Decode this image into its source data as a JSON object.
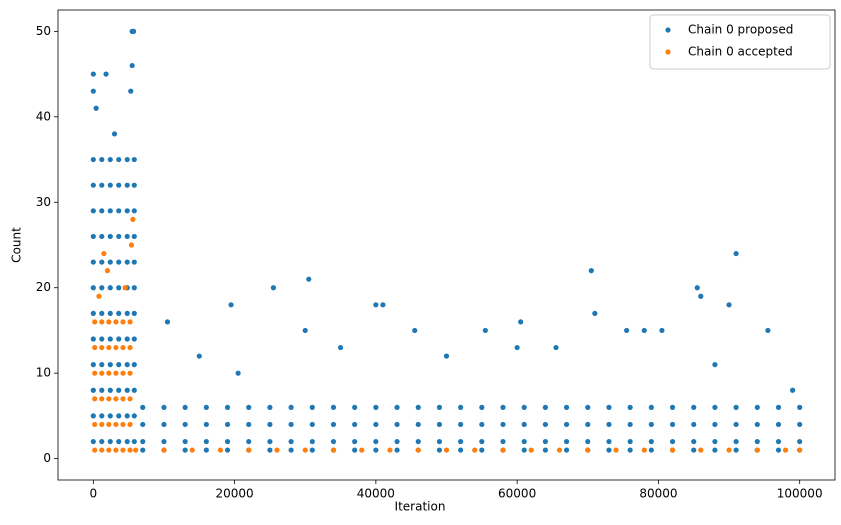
{
  "chart_data": {
    "type": "scatter",
    "xlabel": "Iteration",
    "ylabel": "Count",
    "xlim": [
      -5000,
      105000
    ],
    "ylim": [
      -2.5,
      52.5
    ],
    "xticks": [
      0,
      20000,
      40000,
      60000,
      80000,
      100000
    ],
    "yticks": [
      0,
      10,
      20,
      30,
      40,
      50
    ],
    "legend": "upper right",
    "series": [
      {
        "name": "Chain 0 proposed",
        "color": "#1f77b4",
        "x": [
          0,
          0,
          0,
          0,
          0,
          0,
          0,
          0,
          0,
          0,
          0,
          0,
          1200,
          1200,
          1200,
          1200,
          1200,
          1200,
          1200,
          1200,
          1200,
          1200,
          1200,
          1200,
          2400,
          2400,
          2400,
          2400,
          2400,
          2400,
          2400,
          2400,
          2400,
          2400,
          2400,
          2400,
          3600,
          3600,
          3600,
          3600,
          3600,
          3600,
          3600,
          3600,
          3600,
          3600,
          3600,
          3600,
          4800,
          4800,
          4800,
          4800,
          4800,
          4800,
          4800,
          4800,
          4800,
          4800,
          4800,
          4800,
          5800,
          5800,
          5800,
          5800,
          5800,
          5800,
          5800,
          5800,
          5800,
          5800,
          5800,
          5800,
          0,
          1800,
          0,
          5500,
          5700,
          5500,
          5300,
          400,
          3000,
          7000,
          7000,
          7000,
          7000,
          10000,
          10000,
          10000,
          10000,
          13000,
          13000,
          13000,
          13000,
          16000,
          16000,
          16000,
          16000,
          19000,
          19000,
          19000,
          19000,
          22000,
          22000,
          22000,
          22000,
          25000,
          25000,
          25000,
          25000,
          28000,
          28000,
          28000,
          28000,
          31000,
          31000,
          31000,
          31000,
          34000,
          34000,
          34000,
          34000,
          37000,
          37000,
          37000,
          37000,
          40000,
          40000,
          40000,
          40000,
          43000,
          43000,
          43000,
          43000,
          46000,
          46000,
          46000,
          46000,
          49000,
          49000,
          49000,
          49000,
          52000,
          52000,
          52000,
          52000,
          55000,
          55000,
          55000,
          55000,
          58000,
          58000,
          58000,
          58000,
          61000,
          61000,
          61000,
          61000,
          64000,
          64000,
          64000,
          64000,
          67000,
          67000,
          67000,
          67000,
          70000,
          70000,
          70000,
          70000,
          73000,
          73000,
          73000,
          73000,
          76000,
          76000,
          76000,
          76000,
          79000,
          79000,
          79000,
          79000,
          82000,
          82000,
          82000,
          82000,
          85000,
          85000,
          85000,
          85000,
          88000,
          88000,
          88000,
          88000,
          91000,
          91000,
          91000,
          91000,
          94000,
          94000,
          94000,
          94000,
          97000,
          97000,
          97000,
          97000,
          100000,
          100000,
          100000,
          100000,
          10500,
          19500,
          25500,
          30500,
          40000,
          41000,
          45500,
          50000,
          55500,
          60500,
          65500,
          70500,
          71000,
          75500,
          78000,
          80500,
          85500,
          86000,
          90000,
          91000,
          95500,
          99000,
          15000,
          35000,
          20500,
          30000,
          60000,
          88000
        ],
        "values": [
          2,
          5,
          8,
          11,
          14,
          17,
          20,
          23,
          26,
          29,
          32,
          35,
          2,
          5,
          8,
          11,
          14,
          17,
          20,
          23,
          26,
          29,
          32,
          35,
          2,
          5,
          8,
          11,
          14,
          17,
          20,
          23,
          26,
          29,
          32,
          35,
          2,
          5,
          8,
          11,
          14,
          17,
          20,
          23,
          26,
          29,
          32,
          35,
          2,
          5,
          8,
          11,
          14,
          17,
          20,
          23,
          26,
          29,
          32,
          35,
          2,
          5,
          8,
          11,
          14,
          17,
          20,
          23,
          26,
          29,
          32,
          35,
          45,
          45,
          43,
          50,
          50,
          46,
          43,
          41,
          38,
          1,
          2,
          4,
          6,
          1,
          2,
          4,
          6,
          1,
          2,
          4,
          6,
          1,
          2,
          4,
          6,
          1,
          2,
          4,
          6,
          1,
          2,
          4,
          6,
          1,
          2,
          4,
          6,
          1,
          2,
          4,
          6,
          1,
          2,
          4,
          6,
          1,
          2,
          4,
          6,
          1,
          2,
          4,
          6,
          1,
          2,
          4,
          6,
          1,
          2,
          4,
          6,
          1,
          2,
          4,
          6,
          1,
          2,
          4,
          6,
          1,
          2,
          4,
          6,
          1,
          2,
          4,
          6,
          1,
          2,
          4,
          6,
          1,
          2,
          4,
          6,
          1,
          2,
          4,
          6,
          1,
          2,
          4,
          6,
          1,
          2,
          4,
          6,
          1,
          2,
          4,
          6,
          1,
          2,
          4,
          6,
          1,
          2,
          4,
          6,
          1,
          2,
          4,
          6,
          1,
          2,
          4,
          6,
          1,
          2,
          4,
          6,
          1,
          2,
          4,
          6,
          1,
          2,
          4,
          6,
          1,
          2,
          4,
          6,
          1,
          2,
          4,
          6,
          16,
          18,
          20,
          21,
          18,
          18,
          15,
          12,
          15,
          16,
          13,
          22,
          17,
          15,
          15,
          15,
          20,
          19,
          18,
          24,
          15,
          8,
          12,
          13,
          10,
          15,
          13,
          11
        ]
      },
      {
        "name": "Chain 0 accepted",
        "color": "#ff7f0e",
        "x": [
          200,
          200,
          200,
          200,
          200,
          200,
          1200,
          1200,
          1200,
          1200,
          1200,
          1200,
          2200,
          2200,
          2200,
          2200,
          2200,
          2200,
          3200,
          3200,
          3200,
          3200,
          3200,
          3200,
          4200,
          4200,
          4200,
          4200,
          4200,
          4200,
          5200,
          5200,
          5200,
          5200,
          5200,
          5200,
          1500,
          5600,
          5400,
          2000,
          800,
          4500,
          6000,
          10000,
          14000,
          18000,
          22000,
          26000,
          30000,
          34000,
          38000,
          42000,
          46000,
          50000,
          54000,
          58000,
          62000,
          66000,
          70000,
          74000,
          78000,
          82000,
          86000,
          90000,
          94000,
          98000,
          100000
        ],
        "values": [
          1,
          4,
          7,
          10,
          13,
          16,
          1,
          4,
          7,
          10,
          13,
          16,
          1,
          4,
          7,
          10,
          13,
          16,
          1,
          4,
          7,
          10,
          13,
          16,
          1,
          4,
          7,
          10,
          13,
          16,
          1,
          4,
          7,
          10,
          13,
          16,
          24,
          28,
          25,
          22,
          19,
          20,
          1,
          1,
          1,
          1,
          1,
          1,
          1,
          1,
          1,
          1,
          1,
          1,
          1,
          1,
          1,
          1,
          1,
          1,
          1,
          1,
          1,
          1,
          1,
          1,
          1
        ]
      }
    ]
  }
}
